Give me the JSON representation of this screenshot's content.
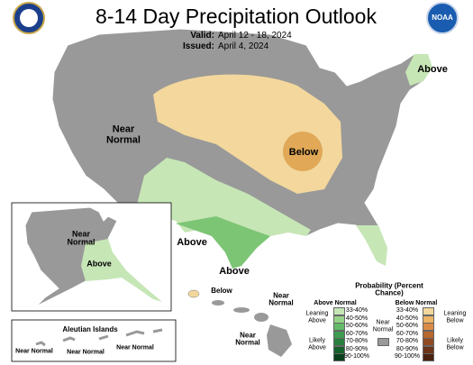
{
  "header": {
    "title": "8-14 Day Precipitation Outlook",
    "valid_label": "Valid:",
    "valid": "April 12 - 18, 2024",
    "issued_label": "Issued:",
    "issued": "April 4, 2024",
    "logo": "NOAA"
  },
  "conus_labels": [
    "Above",
    "Near Normal",
    "Below",
    "Above",
    "Above"
  ],
  "alaska_labels": [
    "Near Normal",
    "Above"
  ],
  "hawaii_labels": [
    "Below",
    "Near Normal",
    "Near Normal"
  ],
  "aleutian": {
    "title": "Aleutian Islands",
    "labels": [
      "Near Normal",
      "Near Normal",
      "Near Normal"
    ]
  },
  "legend": {
    "title": "Probability (Percent Chance)",
    "above_header": "Above Normal",
    "below_header": "Below Normal",
    "leaning_above": "Leaning Above",
    "likely_above": "Likely Above",
    "near_normal": "Near Normal",
    "leaning_below": "Leaning Below",
    "likely_below": "Likely Below",
    "above_ranges": [
      "33-40%",
      "40-50%",
      "50-60%",
      "60-70%",
      "70-80%",
      "80-90%",
      "90-100%"
    ],
    "above_colors": [
      "#c6e6b6",
      "#98d38a",
      "#63bb68",
      "#3f9c50",
      "#27803d",
      "#13602b",
      "#0a3f1b"
    ],
    "below_ranges": [
      "33-40%",
      "40-50%",
      "50-60%",
      "60-70%",
      "70-80%",
      "80-90%",
      "90-100%"
    ],
    "below_colors": [
      "#f3d79c",
      "#eeb466",
      "#d98b45",
      "#b8672e",
      "#924a22",
      "#6c3418",
      "#4a220f"
    ],
    "near_color": "#999999"
  }
}
